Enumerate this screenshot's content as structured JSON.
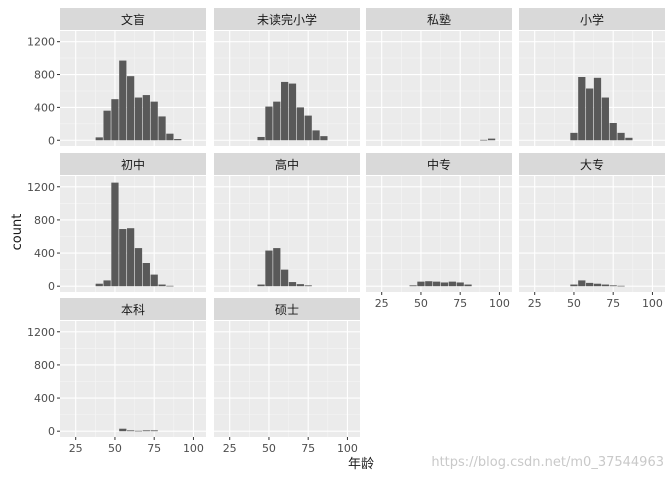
{
  "watermark": "https://blog.csdn.net/m0_37544963",
  "chart_data": {
    "type": "bar",
    "chart_kind": "faceted-histogram",
    "xlabel": "年龄",
    "ylabel": "count",
    "xlim": [
      15,
      108
    ],
    "ylim": [
      -70,
      1330
    ],
    "x_ticks": [
      25,
      50,
      75,
      100
    ],
    "y_ticks": [
      0,
      400,
      800,
      1200
    ],
    "bin_width": 5,
    "grid": true,
    "colors": {
      "bar": "#595959",
      "panel": "#ebebeb",
      "strip": "#d9d9d9",
      "grid": "#ffffff",
      "text": "#1a1a1a",
      "tick_label": "#4d4d4d"
    },
    "bin_centers": [
      15,
      20,
      25,
      30,
      35,
      40,
      45,
      50,
      55,
      60,
      65,
      70,
      75,
      80,
      85,
      90,
      95
    ],
    "facets": [
      {
        "name": "文盲",
        "values": [
          0,
          0,
          0,
          0,
          0,
          35,
          360,
          500,
          970,
          780,
          520,
          550,
          470,
          290,
          80,
          15,
          0
        ]
      },
      {
        "name": "未读完小学",
        "values": [
          0,
          0,
          0,
          0,
          0,
          0,
          40,
          410,
          470,
          710,
          690,
          400,
          300,
          120,
          50,
          0,
          0
        ]
      },
      {
        "name": "私塾",
        "values": [
          0,
          0,
          0,
          0,
          0,
          0,
          0,
          0,
          0,
          0,
          0,
          0,
          0,
          0,
          0,
          5,
          20
        ]
      },
      {
        "name": "小学",
        "values": [
          0,
          0,
          0,
          0,
          0,
          0,
          0,
          90,
          770,
          630,
          760,
          520,
          210,
          90,
          30,
          0,
          0
        ]
      },
      {
        "name": "初中",
        "values": [
          0,
          0,
          0,
          0,
          0,
          30,
          70,
          1250,
          690,
          700,
          460,
          280,
          140,
          20,
          5,
          0,
          0
        ]
      },
      {
        "name": "高中",
        "values": [
          0,
          0,
          0,
          0,
          0,
          0,
          20,
          430,
          460,
          200,
          50,
          25,
          10,
          0,
          0,
          0,
          0
        ]
      },
      {
        "name": "中专",
        "values": [
          0,
          0,
          0,
          0,
          0,
          0,
          10,
          55,
          60,
          55,
          45,
          55,
          45,
          20,
          0,
          0,
          0
        ]
      },
      {
        "name": "大专",
        "values": [
          0,
          0,
          0,
          0,
          0,
          0,
          0,
          20,
          70,
          40,
          30,
          20,
          10,
          5,
          0,
          0,
          0
        ]
      },
      {
        "name": "本科",
        "values": [
          0,
          0,
          0,
          0,
          0,
          0,
          0,
          0,
          30,
          10,
          5,
          10,
          10,
          0,
          0,
          0,
          0
        ]
      },
      {
        "name": "硕士",
        "values": [
          0,
          0,
          0,
          0,
          0,
          0,
          0,
          0,
          0,
          0,
          0,
          0,
          0,
          0,
          0,
          0,
          0
        ]
      }
    ]
  }
}
